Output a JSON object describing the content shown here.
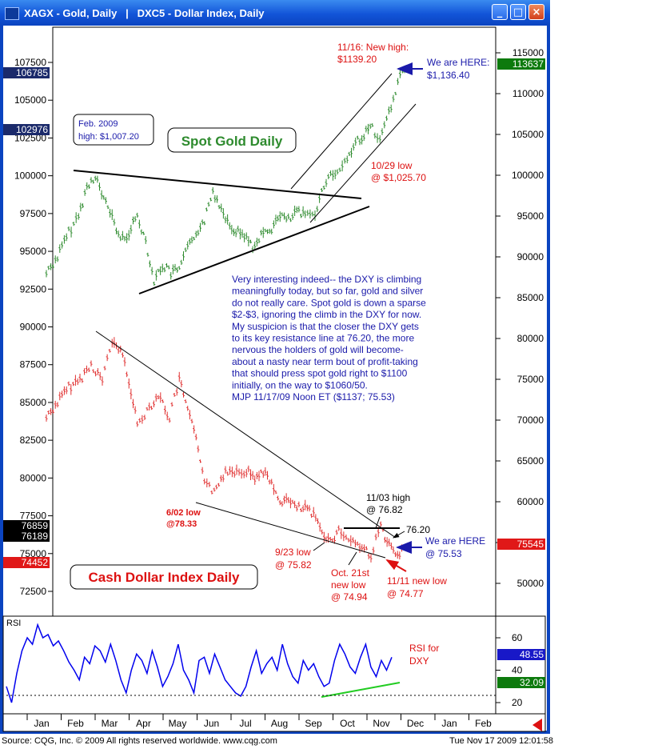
{
  "window": {
    "title": "XAGX - Gold, Daily   |   DXC5 - Dollar Index, Daily",
    "min_label": "_",
    "max_label": "□",
    "close_label": "×"
  },
  "footer": {
    "source": "Source: CQG, Inc. © 2009 All rights reserved worldwide.  www.cqg.com",
    "timestamp": "Tue Nov 17 2009 12:01:58"
  },
  "colors": {
    "gold_series": "#2e8b2e",
    "dollar_series": "#e03030",
    "rsi_series": "#0000ee",
    "rsi_trend": "#22cc22",
    "annotation_blue": "#1a1aaa",
    "annotation_red": "#dd1111",
    "window_blue": "#0b44c0"
  },
  "chart_data": [
    {
      "type": "ohlc",
      "panel": "main",
      "x_ticks": [
        "Jan",
        "Feb",
        "Mar",
        "Apr",
        "May",
        "Jun",
        "Jul",
        "Aug",
        "Sep",
        "Oct",
        "Nov",
        "Dec",
        "Jan",
        "Feb"
      ],
      "left_axis": {
        "ticks": [
          "107500",
          "105000",
          "102500",
          "100000",
          "97500",
          "95000",
          "92500",
          "90000",
          "87500",
          "85000",
          "82500",
          "80000",
          "77500",
          "75000",
          "72500"
        ],
        "markers": [
          {
            "label": "106785",
            "style": "navy"
          },
          {
            "label": "102976",
            "style": "navy"
          },
          {
            "label": "76859",
            "style": "black"
          },
          {
            "label": "76189",
            "style": "black"
          },
          {
            "label": "74452",
            "style": "red"
          }
        ]
      },
      "right_axis": {
        "ticks": [
          "115000",
          "110000",
          "105000",
          "100000",
          "95000",
          "90000",
          "85000",
          "80000",
          "75000",
          "70000",
          "65000",
          "60000",
          "55000",
          "50000"
        ],
        "markers": [
          {
            "label": "113637",
            "style": "green"
          },
          {
            "label": "75545",
            "style": "red"
          }
        ]
      },
      "series": [
        {
          "name": "Spot Gold Daily",
          "axis": "right",
          "points": [
            [
              "Jan",
              88000
            ],
            [
              "Jan",
              90000
            ],
            [
              "Jan",
              93000
            ],
            [
              "Feb",
              95000
            ],
            [
              "Feb",
              98500
            ],
            [
              "Feb",
              100000
            ],
            [
              "Feb",
              97000
            ],
            [
              "Mar",
              95000
            ],
            [
              "Mar",
              92000
            ],
            [
              "Mar",
              93000
            ],
            [
              "Mar",
              95000
            ],
            [
              "Apr",
              92000
            ],
            [
              "Apr",
              87000
            ],
            [
              "Apr",
              89000
            ],
            [
              "Apr",
              88000
            ],
            [
              "May",
              88500
            ],
            [
              "May",
              91000
            ],
            [
              "May",
              93000
            ],
            [
              "May",
              94500
            ],
            [
              "Jun",
              98000
            ],
            [
              "Jun",
              96000
            ],
            [
              "Jun",
              94000
            ],
            [
              "Jun",
              93000
            ],
            [
              "Jul",
              92500
            ],
            [
              "Jul",
              91000
            ],
            [
              "Jul",
              93000
            ],
            [
              "Jul",
              93500
            ],
            [
              "Aug",
              95000
            ],
            [
              "Aug",
              94500
            ],
            [
              "Aug",
              95500
            ],
            [
              "Aug",
              95000
            ],
            [
              "Sep",
              95500
            ],
            [
              "Sep",
              99500
            ],
            [
              "Sep",
              100500
            ],
            [
              "Oct",
              102000
            ],
            [
              "Oct",
              104000
            ],
            [
              "Oct",
              105000
            ],
            [
              "Oct",
              106000
            ],
            [
              "Nov",
              104000
            ],
            [
              "Nov",
              107000
            ],
            [
              "Nov",
              109000
            ],
            [
              "Nov",
              112000
            ],
            [
              "Nov",
              113637
            ]
          ]
        },
        {
          "name": "Cash Dollar Index Daily",
          "axis": "left",
          "points": [
            [
              "Jan",
              84000
            ],
            [
              "Jan",
              85000
            ],
            [
              "Jan",
              86000
            ],
            [
              "Feb",
              86500
            ],
            [
              "Feb",
              87500
            ],
            [
              "Feb",
              86500
            ],
            [
              "Mar",
              89000
            ],
            [
              "Mar",
              88500
            ],
            [
              "Mar",
              86500
            ],
            [
              "Mar",
              83500
            ],
            [
              "Apr",
              84500
            ],
            [
              "Apr",
              85500
            ],
            [
              "Apr",
              84000
            ],
            [
              "May",
              86500
            ],
            [
              "May",
              84500
            ],
            [
              "May",
              82500
            ],
            [
              "May",
              80000
            ],
            [
              "Jun",
              79000
            ],
            [
              "Jun",
              80500
            ],
            [
              "Jun",
              80500
            ],
            [
              "Jul",
              80500
            ],
            [
              "Jul",
              80000
            ],
            [
              "Jul",
              80500
            ],
            [
              "Jul",
              79500
            ],
            [
              "Aug",
              78500
            ],
            [
              "Aug",
              78500
            ],
            [
              "Aug",
              78000
            ],
            [
              "Aug",
              78000
            ],
            [
              "Sep",
              77500
            ],
            [
              "Sep",
              76500
            ],
            [
              "Sep",
              75820
            ],
            [
              "Sep",
              76500
            ],
            [
              "Oct",
              76000
            ],
            [
              "Oct",
              75500
            ],
            [
              "Oct",
              74940
            ],
            [
              "Nov",
              76820
            ],
            [
              "Nov",
              75500
            ],
            [
              "Nov",
              74770
            ],
            [
              "Nov",
              75530
            ]
          ]
        }
      ],
      "annotations": {
        "gold_title": "Spot Gold Daily",
        "dollar_title": "Cash Dollar Index Daily",
        "feb_high_line1": "Feb. 2009",
        "feb_high_line2": "high: $1,007.20",
        "new_high_line1": "11/16: New high:",
        "new_high_line2": "$1139.20",
        "gold_here_line1": "We are HERE:",
        "gold_here_line2": "$1,136.40",
        "oct29_line1": "10/29 low",
        "oct29_line2": "@ $1,025.70",
        "jun02_line1": "6/02 low",
        "jun02_line2": "@78.33",
        "sep23_line1": "9/23 low",
        "sep23_line2": "@ 75.82",
        "oct21_line1": "Oct. 21st",
        "oct21_line2": "new low",
        "oct21_line3": "@ 74.94",
        "nov03_line1": "11/03 high",
        "nov03_line2": "@ 76.82",
        "level_7620": "76.20",
        "dxy_here_line1": "We are HERE",
        "dxy_here_line2": "@ 75.53",
        "nov11_line1": "11/11 new low",
        "nov11_line2": "@ 74.77",
        "commentary": [
          "Very interesting indeed-- the DXY is climbing",
          "meaningfully today, but so far, gold and silver",
          "do not really care.  Spot gold is down a sparse",
          "$2-$3, ignoring the climb in the DXY for now.",
          "My suspicion is that the closer the DXY gets",
          "to its key resistance line at 76.20, the more",
          "nervous the holders of gold will become-",
          "about a nasty near term bout of profit-taking",
          "that should press spot gold right to $1100",
          "initially, on the way to $1060/50.",
          "MJP  11/17/09  Noon ET  ($1137; 75.53)"
        ]
      }
    },
    {
      "type": "line",
      "panel": "rsi",
      "title": "RSI",
      "y_ticks": [
        "60",
        "40",
        "20"
      ],
      "ylim": [
        15,
        75
      ],
      "markers": [
        {
          "label": "48.55",
          "style": "blue"
        },
        {
          "label": "32.09",
          "style": "green"
        }
      ],
      "annotation_line1": "RSI for",
      "annotation_line2": "DXY",
      "series": [
        {
          "values": [
            30,
            20,
            38,
            52,
            60,
            56,
            68,
            60,
            62,
            55,
            58,
            52,
            45,
            40,
            34,
            48,
            44,
            55,
            52,
            45,
            56,
            46,
            34,
            26,
            40,
            50,
            46,
            38,
            52,
            42,
            30,
            36,
            44,
            56,
            40,
            34,
            26,
            46,
            48,
            38,
            50,
            42,
            34,
            30,
            26,
            24,
            30,
            42,
            52,
            38,
            44,
            48,
            40,
            56,
            44,
            36,
            32,
            46,
            40,
            44,
            36,
            30,
            32,
            46,
            56,
            50,
            42,
            38,
            48,
            56,
            42,
            36,
            46,
            40,
            48
          ]
        }
      ]
    }
  ]
}
